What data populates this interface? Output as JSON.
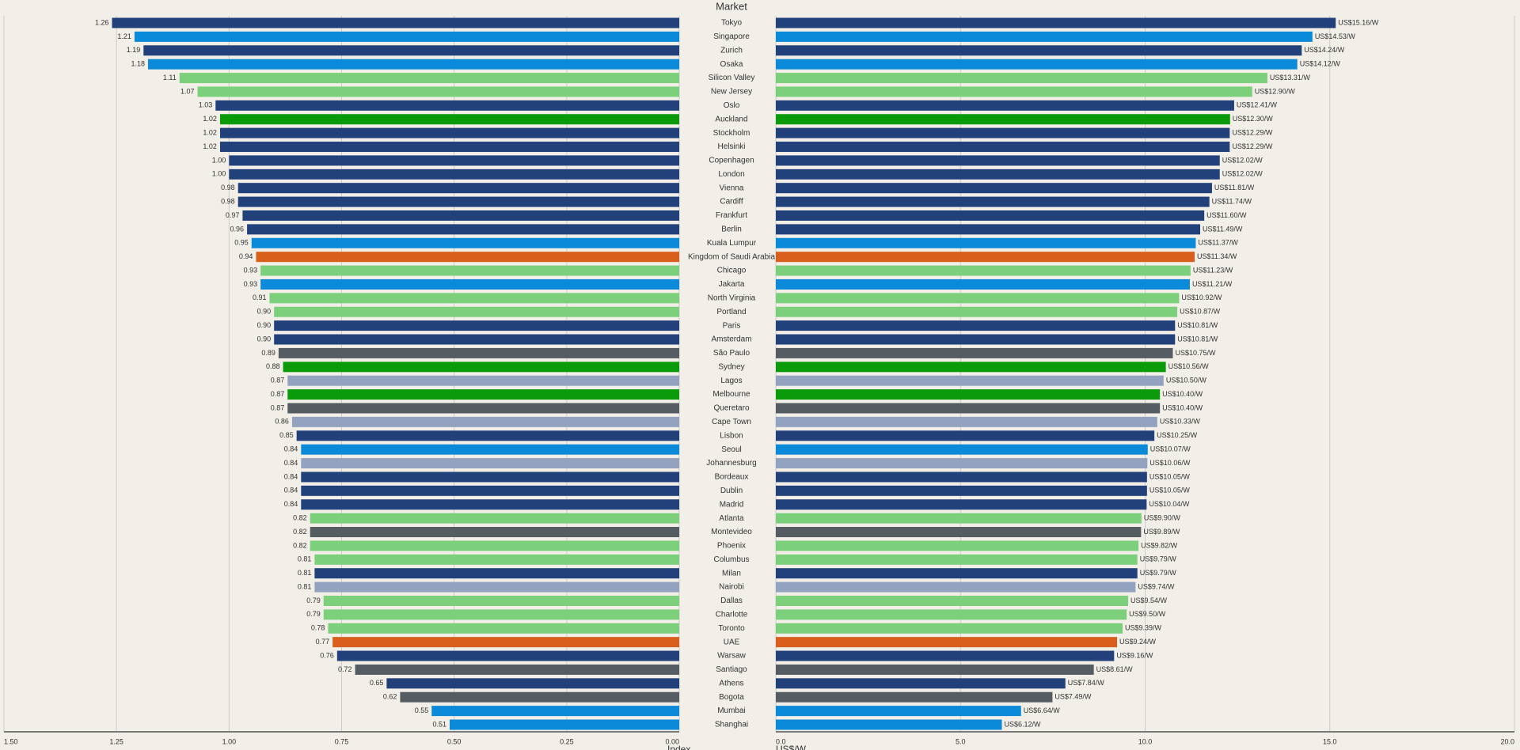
{
  "chart_data": {
    "type": "butterfly-bar",
    "title": "Market",
    "categories": [
      "Tokyo",
      "Singapore",
      "Zurich",
      "Osaka",
      "Silicon Valley",
      "New Jersey",
      "Oslo",
      "Auckland",
      "Stockholm",
      "Helsinki",
      "Copenhagen",
      "London",
      "Vienna",
      "Cardiff",
      "Frankfurt",
      "Berlin",
      "Kuala Lumpur",
      "Kingdom of Saudi Arabia",
      "Chicago",
      "Jakarta",
      "North Virginia",
      "Portland",
      "Paris",
      "Amsterdam",
      "São Paulo",
      "Sydney",
      "Lagos",
      "Melbourne",
      "Queretaro",
      "Cape Town",
      "Lisbon",
      "Seoul",
      "Johannesburg",
      "Bordeaux",
      "Dublin",
      "Madrid",
      "Atlanta",
      "Montevideo",
      "Phoenix",
      "Columbus",
      "Milan",
      "Nairobi",
      "Dallas",
      "Charlotte",
      "Toronto",
      "UAE",
      "Warsaw",
      "Santiago",
      "Athens",
      "Bogota",
      "Mumbai",
      "Shanghai"
    ],
    "colors": [
      "#22417a",
      "#0b8ad9",
      "#22417a",
      "#0b8ad9",
      "#7ccf7b",
      "#7ccf7b",
      "#22417a",
      "#0a9a0a",
      "#22417a",
      "#22417a",
      "#22417a",
      "#22417a",
      "#22417a",
      "#22417a",
      "#22417a",
      "#22417a",
      "#0b8ad9",
      "#d9601c",
      "#7ccf7b",
      "#0b8ad9",
      "#7ccf7b",
      "#7ccf7b",
      "#22417a",
      "#22417a",
      "#555c62",
      "#0a9a0a",
      "#93a3bf",
      "#0a9a0a",
      "#555c62",
      "#93a3bf",
      "#22417a",
      "#0b8ad9",
      "#93a3bf",
      "#22417a",
      "#22417a",
      "#22417a",
      "#7ccf7b",
      "#555c62",
      "#7ccf7b",
      "#7ccf7b",
      "#22417a",
      "#93a3bf",
      "#7ccf7b",
      "#7ccf7b",
      "#7ccf7b",
      "#d9601c",
      "#22417a",
      "#555c62",
      "#22417a",
      "#555c62",
      "#0b8ad9",
      "#0b8ad9"
    ],
    "left": {
      "x_label": "Index",
      "xlim": [
        1.5,
        0
      ],
      "xticks": [
        {
          "value": 1.5,
          "label": "1.50"
        },
        {
          "value": 1.25,
          "label": "1.25"
        },
        {
          "value": 1,
          "label": "1.00"
        },
        {
          "value": 0.75,
          "label": "0.75"
        },
        {
          "value": 0.5,
          "label": "0.50"
        },
        {
          "value": 0.25,
          "label": "0.25"
        },
        {
          "value": 0,
          "label": "0.00"
        }
      ],
      "values": [
        1.26,
        1.21,
        1.19,
        1.18,
        1.11,
        1.07,
        1.03,
        1.02,
        1.02,
        1.02,
        1,
        1,
        0.98,
        0.98,
        0.97,
        0.96,
        0.95,
        0.94,
        0.93,
        0.93,
        0.91,
        0.9,
        0.9,
        0.9,
        0.89,
        0.88,
        0.87,
        0.87,
        0.87,
        0.86,
        0.85,
        0.84,
        0.84,
        0.84,
        0.84,
        0.84,
        0.82,
        0.82,
        0.82,
        0.81,
        0.81,
        0.81,
        0.79,
        0.79,
        0.78,
        0.77,
        0.76,
        0.72,
        0.65,
        0.62,
        0.55,
        0.51
      ],
      "value_labels": [
        "1.26",
        "1.21",
        "1.19",
        "1.18",
        "1.11",
        "1.07",
        "1.03",
        "1.02",
        "1.02",
        "1.02",
        "1.00",
        "1.00",
        "0.98",
        "0.98",
        "0.97",
        "0.96",
        "0.95",
        "0.94",
        "0.93",
        "0.93",
        "0.91",
        "0.90",
        "0.90",
        "0.90",
        "0.89",
        "0.88",
        "0.87",
        "0.87",
        "0.87",
        "0.86",
        "0.85",
        "0.84",
        "0.84",
        "0.84",
        "0.84",
        "0.84",
        "0.82",
        "0.82",
        "0.82",
        "0.81",
        "0.81",
        "0.81",
        "0.79",
        "0.79",
        "0.78",
        "0.77",
        "0.76",
        "0.72",
        "0.65",
        "0.62",
        "0.55",
        "0.51"
      ]
    },
    "right": {
      "x_label": "US$/W",
      "xlim": [
        0,
        20
      ],
      "xticks": [
        {
          "value": 0,
          "label": "0.0"
        },
        {
          "value": 5,
          "label": "5.0"
        },
        {
          "value": 10,
          "label": "10.0"
        },
        {
          "value": 15,
          "label": "15.0"
        },
        {
          "value": 20,
          "label": "20.0"
        }
      ],
      "values": [
        15.16,
        14.53,
        14.24,
        14.12,
        13.31,
        12.9,
        12.41,
        12.3,
        12.29,
        12.29,
        12.02,
        12.02,
        11.81,
        11.74,
        11.6,
        11.49,
        11.37,
        11.34,
        11.23,
        11.21,
        10.92,
        10.87,
        10.81,
        10.81,
        10.75,
        10.56,
        10.5,
        10.4,
        10.4,
        10.33,
        10.25,
        10.07,
        10.06,
        10.05,
        10.05,
        10.04,
        9.9,
        9.89,
        9.82,
        9.79,
        9.79,
        9.74,
        9.54,
        9.5,
        9.39,
        9.24,
        9.16,
        8.61,
        7.84,
        7.49,
        6.64,
        6.12
      ],
      "value_labels": [
        "US$15.16/W",
        "US$14.53/W",
        "US$14.24/W",
        "US$14.12/W",
        "US$13.31/W",
        "US$12.90/W",
        "US$12.41/W",
        "US$12.30/W",
        "US$12.29/W",
        "US$12.29/W",
        "US$12.02/W",
        "US$12.02/W",
        "US$11.81/W",
        "US$11.74/W",
        "US$11.60/W",
        "US$11.49/W",
        "US$11.37/W",
        "US$11.34/W",
        "US$11.23/W",
        "US$11.21/W",
        "US$10.92/W",
        "US$10.87/W",
        "US$10.81/W",
        "US$10.81/W",
        "US$10.75/W",
        "US$10.56/W",
        "US$10.50/W",
        "US$10.40/W",
        "US$10.40/W",
        "US$10.33/W",
        "US$10.25/W",
        "US$10.07/W",
        "US$10.06/W",
        "US$10.05/W",
        "US$10.05/W",
        "US$10.04/W",
        "US$9.90/W",
        "US$9.89/W",
        "US$9.82/W",
        "US$9.79/W",
        "US$9.79/W",
        "US$9.74/W",
        "US$9.54/W",
        "US$9.50/W",
        "US$9.39/W",
        "US$9.24/W",
        "US$9.16/W",
        "US$8.61/W",
        "US$7.84/W",
        "US$7.49/W",
        "US$6.64/W",
        "US$6.12/W"
      ]
    }
  }
}
